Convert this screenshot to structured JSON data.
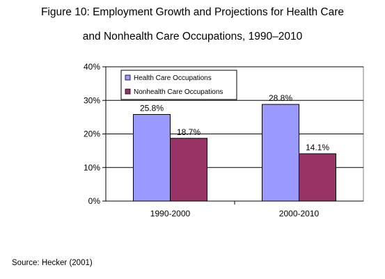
{
  "title_lines": [
    "Figure 10: Employment Growth and Projections for Health Care",
    "and Nonhealth Care Occupations, 1990–2010"
  ],
  "source": "Source: Hecker (2001)",
  "chart_data": {
    "type": "bar",
    "title": "Figure 10: Employment Growth and Projections for Health Care and Nonhealth Care Occupations, 1990–2010",
    "categories": [
      "1990-2000",
      "2000-2010"
    ],
    "series": [
      {
        "name": "Health Care Occupations",
        "values": [
          25.8,
          28.8
        ],
        "labels": [
          "25.8%",
          "28.8%"
        ],
        "color": "#9999ff"
      },
      {
        "name": "Nonhealth Care Occupations",
        "values": [
          18.7,
          14.1
        ],
        "labels": [
          "18.7%",
          "14.1%"
        ],
        "color": "#993366"
      }
    ],
    "ylim": [
      0,
      40
    ],
    "yticks": [
      0,
      10,
      20,
      30,
      40
    ],
    "ytick_labels": [
      "0%",
      "10%",
      "20%",
      "30%",
      "40%"
    ],
    "xlabel": "",
    "ylabel": "",
    "grid": true,
    "legend_position": "top-left"
  }
}
